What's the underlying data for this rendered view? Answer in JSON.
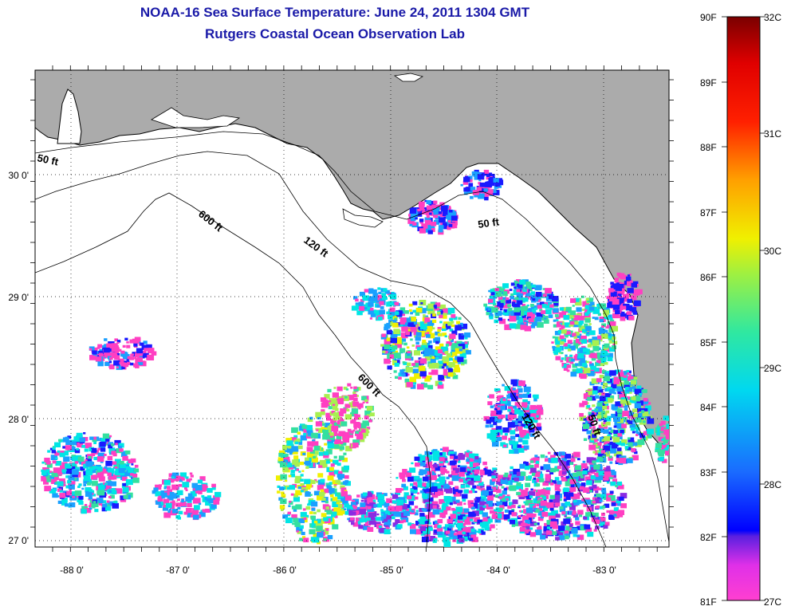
{
  "title": {
    "line1": "NOAA-16 Sea Surface Temperature:  June 24, 2011 1304 GMT",
    "line2": "Rutgers Coastal Ocean Observation Lab"
  },
  "axes": {
    "lat_labels": [
      "30 0'",
      "29 0'",
      "28 0'",
      "27 0'"
    ],
    "lon_labels": [
      "-88 0'",
      "-87 0'",
      "-86 0'",
      "-85 0'",
      "-84 0'",
      "-83 0'"
    ],
    "lat_range": [
      27,
      30.9
    ],
    "lon_range": [
      -88.35,
      -82.45
    ],
    "grid": true
  },
  "contours": {
    "labels": [
      "50 ft",
      "600 ft",
      "120 ft",
      "50 ft",
      "600 ft",
      "120 ft",
      "50 ft"
    ]
  },
  "colorbar": {
    "f_labels": [
      "90F",
      "89F",
      "88F",
      "87F",
      "86F",
      "85F",
      "84F",
      "83F",
      "82F",
      "81F"
    ],
    "c_labels": [
      "32C",
      "31C",
      "30C",
      "29C",
      "28C",
      "27C"
    ]
  },
  "colors": {
    "land": "#ababab",
    "title": "#1a1aa8",
    "sst_scale": [
      "#ff3fc2",
      "#8a2be2",
      "#1a1aff",
      "#1aa0ff",
      "#00e5e5",
      "#33e0a0",
      "#a8f050",
      "#f0f000",
      "#ff8000",
      "#ff1a00",
      "#8b0000"
    ]
  }
}
